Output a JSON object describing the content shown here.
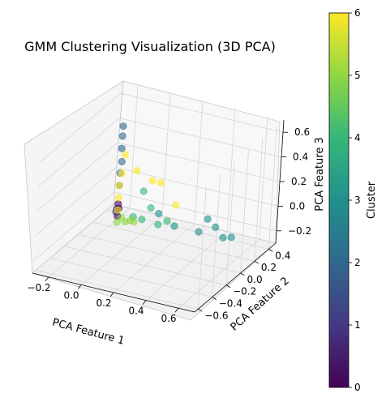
{
  "chart_data": {
    "type": "scatter",
    "projection": "3d",
    "title": "GMM Clustering Visualization (3D PCA)",
    "xlabel": "PCA Feature 1",
    "ylabel": "PCA Feature 2",
    "zlabel": "PCA Feature 3",
    "xticks": [
      "−0.2",
      "0.0",
      "0.2",
      "0.4",
      "0.6"
    ],
    "yticks": [
      "−0.6",
      "−0.4",
      "−0.2",
      "0.0",
      "0.2",
      "0.4"
    ],
    "zticks": [
      "−0.2",
      "0.0",
      "0.2",
      "0.4",
      "0.6"
    ],
    "xlim": [
      -0.3,
      0.7
    ],
    "ylim": [
      -0.65,
      0.5
    ],
    "zlim": [
      -0.3,
      0.7
    ],
    "grid": true,
    "colormap": "viridis",
    "colorbar": {
      "label": "Cluster",
      "ticks": [
        "0",
        "1",
        "2",
        "3",
        "4",
        "5",
        "6"
      ],
      "range": [
        0,
        6
      ],
      "colors": [
        "#440154",
        "#443983",
        "#31688e",
        "#21918c",
        "#35b779",
        "#90d743",
        "#fde725"
      ]
    },
    "series": [
      {
        "cluster": 0,
        "color": "#440154",
        "points": [
          [
            -0.05,
            -0.05,
            -0.05
          ],
          [
            -0.06,
            -0.04,
            0.0
          ],
          [
            -0.04,
            -0.06,
            0.02
          ],
          [
            -0.05,
            -0.05,
            0.05
          ]
        ]
      },
      {
        "cluster": 1,
        "color": "#443983",
        "points": [
          [
            -0.06,
            -0.05,
            -0.02
          ],
          [
            -0.05,
            -0.05,
            0.01
          ]
        ]
      },
      {
        "cluster": 2,
        "color": "#31688e",
        "points": [
          [
            -0.05,
            -0.05,
            0.68
          ],
          [
            -0.05,
            -0.05,
            0.6
          ],
          [
            -0.05,
            -0.05,
            0.5
          ],
          [
            -0.04,
            -0.06,
            0.4
          ],
          [
            -0.05,
            -0.05,
            0.3
          ],
          [
            -0.05,
            -0.05,
            0.2
          ]
        ]
      },
      {
        "cluster": 3,
        "color": "#21918c",
        "points": [
          [
            0.3,
            -0.05,
            -0.02
          ],
          [
            0.45,
            -0.05,
            -0.02
          ],
          [
            0.6,
            -0.05,
            -0.02
          ],
          [
            0.65,
            -0.05,
            0.0
          ],
          [
            0.55,
            -0.05,
            0.05
          ],
          [
            0.5,
            -0.05,
            0.1
          ],
          [
            0.2,
            -0.05,
            0.05
          ]
        ]
      },
      {
        "cluster": 4,
        "color": "#35b779",
        "points": [
          [
            0.1,
            -0.05,
            -0.03
          ],
          [
            0.2,
            -0.05,
            -0.04
          ],
          [
            0.05,
            -0.06,
            -0.02
          ],
          [
            0.25,
            -0.04,
            0.0
          ],
          [
            0.15,
            -0.05,
            0.08
          ],
          [
            0.1,
            -0.05,
            0.2
          ]
        ]
      },
      {
        "cluster": 5,
        "color": "#90d743",
        "points": [
          [
            -0.05,
            -0.05,
            -0.1
          ],
          [
            0.0,
            -0.05,
            -0.08
          ],
          [
            0.03,
            -0.05,
            -0.06
          ],
          [
            -0.02,
            -0.06,
            -0.05
          ],
          [
            0.05,
            -0.04,
            -0.07
          ]
        ]
      },
      {
        "cluster": 6,
        "color": "#fde725",
        "points": [
          [
            -0.05,
            -0.05,
            0.1
          ],
          [
            -0.05,
            -0.05,
            0.2
          ],
          [
            -0.04,
            -0.05,
            0.3
          ],
          [
            -0.03,
            -0.04,
            0.45
          ],
          [
            0.05,
            -0.05,
            0.35
          ],
          [
            0.15,
            -0.05,
            0.3
          ],
          [
            0.2,
            -0.05,
            0.3
          ],
          [
            0.3,
            -0.05,
            0.15
          ],
          [
            -0.05,
            -0.05,
            0.0
          ]
        ]
      }
    ]
  }
}
